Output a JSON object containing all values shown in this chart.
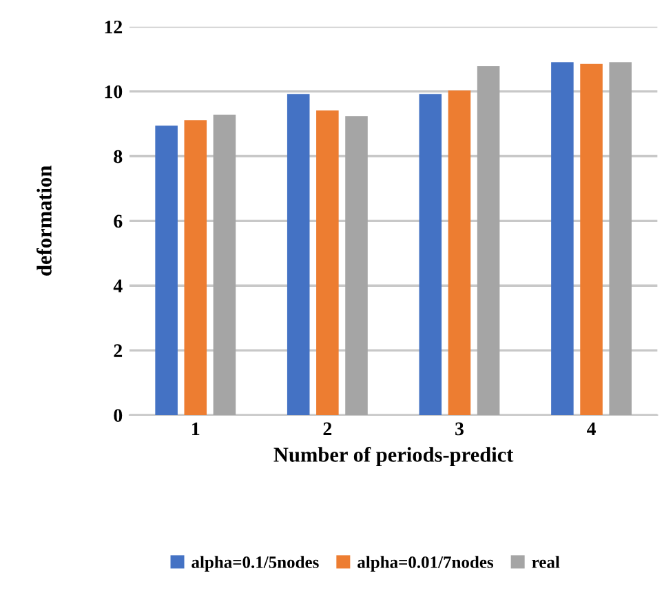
{
  "chart_data": {
    "type": "bar",
    "xlabel": "Number of periods-predict",
    "ylabel": "deformation",
    "categories": [
      "1",
      "2",
      "3",
      "4"
    ],
    "series": [
      {
        "name": "alpha=0.1/5nodes",
        "color": "#4472c4",
        "values": [
          8.94,
          9.92,
          9.92,
          10.9
        ]
      },
      {
        "name": "alpha=0.01/7nodes",
        "color": "#ed7d31",
        "values": [
          9.11,
          9.41,
          10.03,
          10.85
        ]
      },
      {
        "name": "real",
        "color": "#a5a5a5",
        "values": [
          9.28,
          9.24,
          10.78,
          10.9
        ]
      }
    ],
    "ylim": [
      0,
      12
    ],
    "yticks": [
      0,
      2,
      4,
      6,
      8,
      10,
      12
    ],
    "grid": "y",
    "legend": "bottom"
  }
}
